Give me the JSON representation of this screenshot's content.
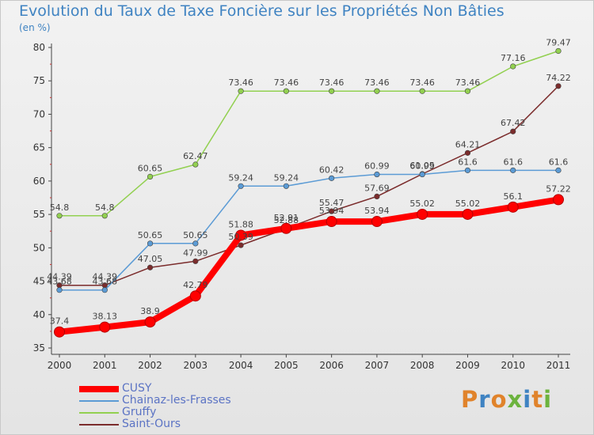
{
  "title": "Evolution du Taux de Taxe Foncière sur les Propriétés Non Bâties",
  "unit_label": "(en %)",
  "logo_text": "Proxiti",
  "chart_data": {
    "type": "line",
    "x": [
      "2000",
      "2001",
      "2002",
      "2003",
      "2004",
      "2005",
      "2006",
      "2007",
      "2008",
      "2009",
      "2010",
      "2011"
    ],
    "ylim": [
      35,
      80
    ],
    "yticks": [
      35,
      40,
      45,
      50,
      55,
      60,
      65,
      70,
      75,
      80
    ],
    "grid": false,
    "legend_position": "bottom-left",
    "series": [
      {
        "name": "CUSY",
        "color": "#ff0000",
        "values": [
          37.4,
          38.13,
          38.9,
          42.79,
          51.88,
          52.91,
          53.94,
          53.94,
          55.02,
          55.02,
          56.1,
          57.22
        ],
        "labels": [
          "37.4",
          "38.13",
          "38.9",
          "42.79",
          "51.88",
          "52.91",
          "53.94",
          "53.94",
          "55.02",
          "55.02",
          "56.1",
          "57.22"
        ]
      },
      {
        "name": "Chainaz-les-Frasses",
        "color": "#5b9bd5",
        "values": [
          43.68,
          43.68,
          50.65,
          50.65,
          59.24,
          59.24,
          60.42,
          60.99,
          60.99,
          61.6,
          61.6,
          61.6
        ],
        "labels": [
          "43.68",
          "43.68",
          "50.65",
          "50.65",
          "59.24",
          "59.24",
          "60.42",
          "60.99",
          "60.99",
          "61.6",
          "61.6",
          "61.6"
        ]
      },
      {
        "name": "Gruffy",
        "color": "#92d050",
        "values": [
          54.8,
          54.8,
          60.65,
          62.47,
          73.46,
          73.46,
          73.46,
          73.46,
          73.46,
          73.46,
          77.16,
          79.47
        ],
        "labels": [
          "54.8",
          "54.8",
          "60.65",
          "62.47",
          "73.46",
          "73.46",
          "73.46",
          "73.46",
          "73.46",
          "73.46",
          "77.16",
          "79.47"
        ]
      },
      {
        "name": "Saint-Ours",
        "color": "#7b2c2c",
        "values": [
          44.39,
          44.39,
          47.05,
          47.99,
          50.39,
          52.88,
          55.47,
          57.69,
          61.05,
          64.21,
          67.42,
          74.22
        ],
        "labels": [
          "44.39",
          "44.39",
          "47.05",
          "47.99",
          "50.39",
          "52.88",
          "55.47",
          "57.69",
          "61.05",
          "64.21",
          "67.42",
          "74.22"
        ]
      }
    ]
  }
}
